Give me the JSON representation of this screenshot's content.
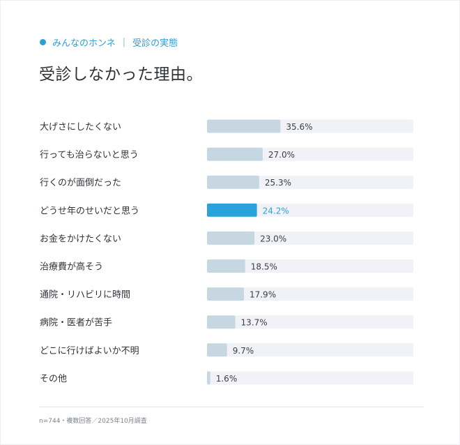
{
  "header": {
    "category": "みんなのホンネ",
    "separator": "|",
    "section": "受診の実態",
    "title": "受診しなかった理由。"
  },
  "footer": {
    "note": "n=744・複数回答／2025年10月調査"
  },
  "colors": {
    "accent": "#2aa3dc",
    "bar": "#c7d7e2",
    "track": "#f1f2f7",
    "label": "#2f3338",
    "value": "#3a3f45"
  },
  "chart_data": {
    "type": "bar",
    "orientation": "horizontal",
    "categories": [
      "大げさにしたくない",
      "行っても治らないと思う",
      "行くのが面倒だった",
      "どうせ年のせいだと思う",
      "お金をかけたくない",
      "治療費が高そう",
      "通院・リハビリに時間",
      "病院・医者が苦手",
      "どこに行けばよいか不明",
      "その他"
    ],
    "values": [
      35.6,
      27.0,
      25.3,
      24.2,
      23.0,
      18.5,
      17.9,
      13.7,
      9.7,
      1.6
    ],
    "value_labels": [
      "35.6%",
      "27.0%",
      "25.3%",
      "24.2%",
      "23.0%",
      "18.5%",
      "17.9%",
      "13.7%",
      "9.7%",
      "1.6%"
    ],
    "highlight_index": 3,
    "xlim": [
      0,
      100
    ],
    "grid": false,
    "legend": "none"
  }
}
